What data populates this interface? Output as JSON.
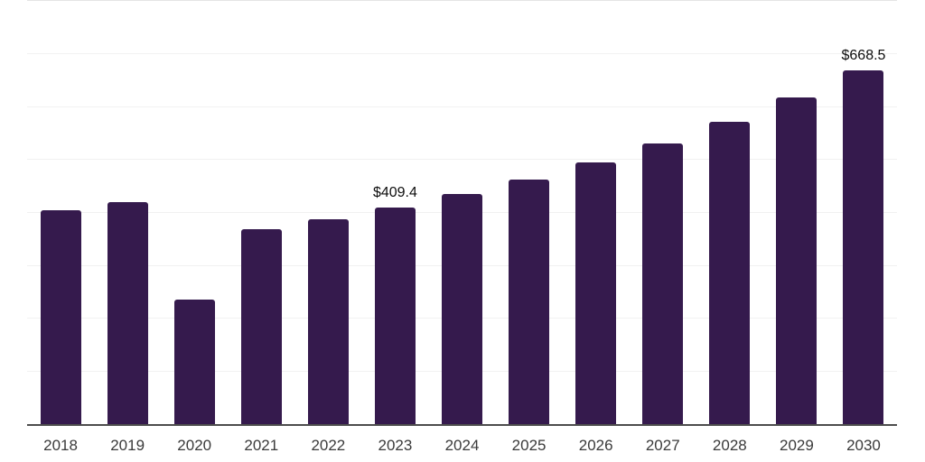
{
  "chart_data": {
    "type": "bar",
    "title": "",
    "xlabel": "",
    "ylabel": "",
    "categories": [
      "2018",
      "2019",
      "2020",
      "2021",
      "2022",
      "2023",
      "2024",
      "2025",
      "2026",
      "2027",
      "2028",
      "2029",
      "2030"
    ],
    "values": [
      405,
      420,
      236,
      368,
      387,
      409.4,
      435,
      462,
      495,
      530,
      571,
      618,
      668.5
    ],
    "data_labels": [
      "",
      "",
      "",
      "",
      "",
      "$409.4",
      "",
      "",
      "",
      "",
      "",
      "",
      "$668.5"
    ],
    "ylim": [
      0,
      800
    ],
    "gridline_step": 100,
    "grid": "horizontal-only",
    "legend": "none",
    "colors": {
      "bar": "#351a4d",
      "gridline": "#f1f1f1",
      "plot_top_border": "#e4e4e4",
      "axis_line": "#4d4d4d",
      "data_label_text": "#0d0d0d",
      "tick_label_text": "#3a3a3a",
      "background": "#ffffff"
    }
  }
}
